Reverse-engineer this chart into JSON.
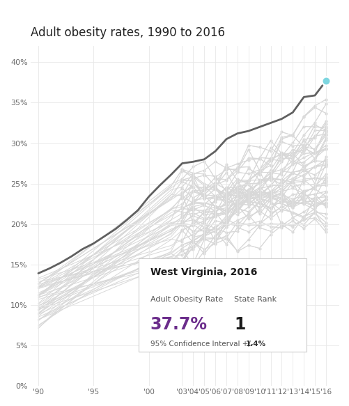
{
  "title": "Adult obesity rates, 1990 to 2016",
  "title_fontsize": 12,
  "background_color": "#ffffff",
  "plot_bg_color": "#ffffff",
  "ytick_vals": [
    0,
    5,
    10,
    15,
    20,
    25,
    30,
    35,
    40
  ],
  "xlabels_sparse": [
    "'90",
    "'95",
    "'00"
  ],
  "xlabels_dense": [
    "'03",
    "'04",
    "'05",
    "'06",
    "'07",
    "'08",
    "'09",
    "'10",
    "'11",
    "'12",
    "'13",
    "'14",
    "'15",
    "'16"
  ],
  "highlighted_rate": 37.7,
  "highlighted_rank": 1,
  "highlighted_ci": 1.4,
  "highlight_color": "#606060",
  "dot_fill_color": "#7dd6e0",
  "dot_edge_color": "#7dd6e0",
  "other_states_color": "#d8d8d8",
  "years_sparse": [
    1990,
    1995,
    2000
  ],
  "years_dense": [
    2003,
    2004,
    2005,
    2006,
    2007,
    2008,
    2009,
    2010,
    2011,
    2012,
    2013,
    2014,
    2015,
    2016
  ],
  "all_years": [
    1990,
    1991,
    1992,
    1993,
    1994,
    1995,
    1996,
    1997,
    1998,
    1999,
    2000,
    2001,
    2002,
    2003,
    2004,
    2005,
    2006,
    2007,
    2008,
    2009,
    2010,
    2011,
    2012,
    2013,
    2014,
    2015,
    2016
  ],
  "wv_data": [
    13.9,
    14.5,
    15.2,
    16.0,
    16.9,
    17.6,
    18.5,
    19.4,
    20.5,
    21.7,
    23.4,
    24.8,
    26.1,
    27.5,
    27.7,
    28.0,
    29.0,
    30.5,
    31.2,
    31.5,
    32.0,
    32.5,
    33.0,
    33.8,
    35.7,
    35.9,
    37.7
  ],
  "purple_color": "#6b2d8b",
  "ylim": [
    0,
    42
  ],
  "xlim_left": 1989.3,
  "xlim_right": 2017.2,
  "grid_color": "#e8e8e8",
  "seed": 42
}
